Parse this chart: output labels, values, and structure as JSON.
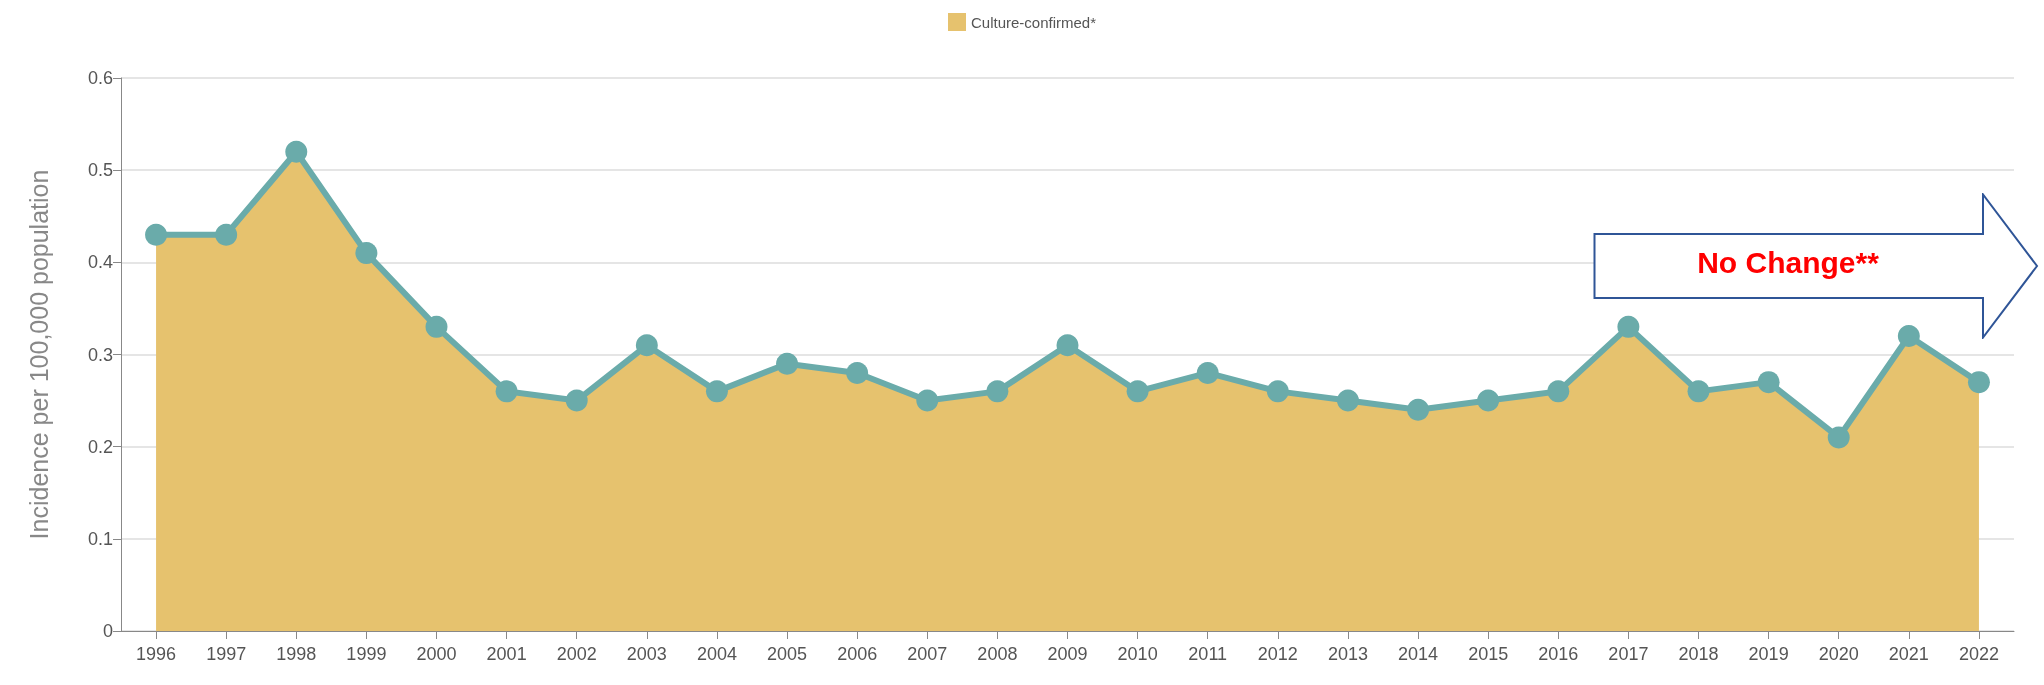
{
  "chart_data": {
    "type": "area",
    "ylabel": "Incidence per 100,000 population",
    "categories": [
      "1996",
      "1997",
      "1998",
      "1999",
      "2000",
      "2001",
      "2002",
      "2003",
      "2004",
      "2005",
      "2006",
      "2007",
      "2008",
      "2009",
      "2010",
      "2011",
      "2012",
      "2013",
      "2014",
      "2015",
      "2016",
      "2017",
      "2018",
      "2019",
      "2020",
      "2021",
      "2022"
    ],
    "series": [
      {
        "name": "Culture-confirmed*",
        "color": "#e6c26e",
        "marker": "none",
        "values": [
          0.43,
          0.43,
          0.52,
          0.41,
          0.33,
          0.26,
          0.25,
          0.31,
          0.26,
          0.29,
          0.28,
          0.25,
          0.26,
          0.31,
          0.26,
          0.28,
          0.26,
          0.25,
          0.24,
          0.25,
          0.26,
          0.33,
          0.26,
          0.27,
          0.21,
          0.32,
          0.27
        ]
      },
      {
        "type": "line",
        "color": "#6aabaa",
        "values": [
          0.43,
          0.43,
          0.52,
          0.41,
          0.33,
          0.26,
          0.25,
          0.31,
          0.26,
          0.29,
          0.28,
          0.25,
          0.26,
          0.31,
          0.26,
          0.28,
          0.26,
          0.25,
          0.24,
          0.25,
          0.26,
          0.33,
          0.26,
          0.27,
          0.21,
          0.32,
          0.27
        ]
      }
    ],
    "ylim": [
      0,
      0.6
    ],
    "yticks": [
      0,
      0.1,
      0.2,
      0.3,
      0.4,
      0.5,
      0.6
    ],
    "grid": "y",
    "legend": "top",
    "marker": "circle",
    "line_style": "solid",
    "annotations": [
      "No Change**"
    ]
  }
}
